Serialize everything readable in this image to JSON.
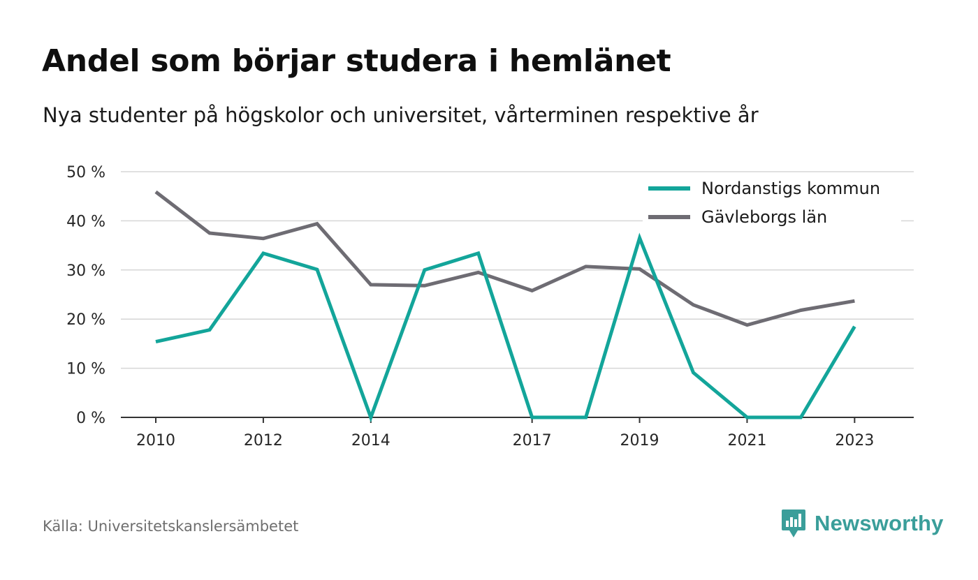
{
  "header": {
    "title": "Andel som börjar studera i hemlänet",
    "subtitle": "Nya studenter på högskolor och universitet, vårterminen respektive år"
  },
  "footer": {
    "source": "Källa: Universitetskanslersämbetet",
    "brand": "Newsworthy",
    "brand_icon": "bar-chart-speech-bubble-icon"
  },
  "colors": {
    "nordanstig": "#13a59a",
    "gavleborg": "#6e6c73",
    "grid": "#d6d6d6",
    "axis": "#333333",
    "brand": "#3a9e9a"
  },
  "chart_data": {
    "type": "line",
    "x": [
      2010,
      2011,
      2012,
      2013,
      2014,
      2015,
      2016,
      2017,
      2018,
      2019,
      2020,
      2021,
      2022,
      2023
    ],
    "x_tick_labels": [
      "2010",
      "2012",
      "2014",
      "2017",
      "2019",
      "2021",
      "2023"
    ],
    "x_tick_values": [
      2010,
      2012,
      2014,
      2017,
      2019,
      2021,
      2023
    ],
    "xlim": [
      2009.35,
      2024.1
    ],
    "ylim": [
      0,
      50
    ],
    "y_ticks": [
      0,
      10,
      20,
      30,
      40,
      50
    ],
    "y_tick_labels": [
      "0 %",
      "10 %",
      "20 %",
      "30 %",
      "40 %",
      "50 %"
    ],
    "grid": true,
    "legend_position": "top-right",
    "series": [
      {
        "name": "Nordanstigs kommun",
        "color": "#13a59a",
        "values": [
          15.4,
          17.8,
          33.4,
          30.1,
          0,
          30.0,
          33.4,
          0,
          0,
          36.5,
          9.1,
          0,
          0,
          18.5
        ]
      },
      {
        "name": "Gävleborgs län",
        "color": "#6e6c73",
        "values": [
          45.9,
          37.5,
          36.4,
          39.4,
          27.0,
          26.8,
          29.5,
          25.8,
          30.7,
          30.2,
          22.9,
          18.8,
          21.8,
          23.7
        ]
      }
    ]
  }
}
